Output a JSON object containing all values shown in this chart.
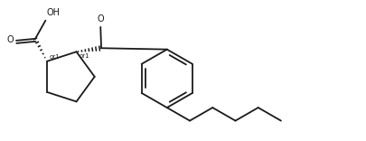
{
  "bg_color": "#ffffff",
  "line_color": "#1a1a1a",
  "line_width": 1.3,
  "font_size": 7,
  "figsize": [
    4.06,
    1.56
  ],
  "dpi": 100,
  "xlim": [
    0,
    10
  ],
  "ylim": [
    0,
    3.84
  ]
}
